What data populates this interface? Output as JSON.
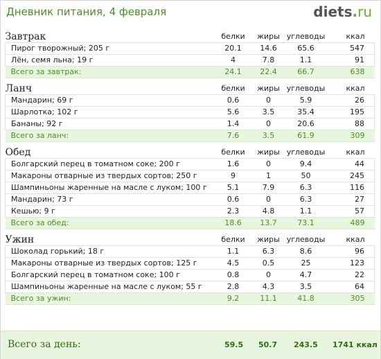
{
  "header": {
    "title": "Дневник питания, 4 февраля",
    "logo_name": "diets",
    "logo_dot": ".",
    "logo_tld": "ru"
  },
  "columns": {
    "protein": "белки",
    "fat": "жиры",
    "carbs": "углеводы",
    "kcal": "ккал"
  },
  "sections": [
    {
      "title": "Завтрак",
      "items": [
        {
          "name": "Пирог творожный; 205 г",
          "protein": "20.1",
          "fat": "14.6",
          "carbs": "65.6",
          "kcal": "547"
        },
        {
          "name": "Лён, семя льна; 19 г",
          "protein": "4",
          "fat": "7.8",
          "carbs": "1.1",
          "kcal": "91"
        }
      ],
      "total": {
        "label": "Всего за завтрак:",
        "protein": "24.1",
        "fat": "22.4",
        "carbs": "66.7",
        "kcal": "638"
      }
    },
    {
      "title": "Ланч",
      "items": [
        {
          "name": "Мандарин; 69 г",
          "protein": "0.6",
          "fat": "0",
          "carbs": "5.9",
          "kcal": "26"
        },
        {
          "name": "Шарлотка; 102 г",
          "protein": "5.6",
          "fat": "3.5",
          "carbs": "35.4",
          "kcal": "195"
        },
        {
          "name": "Бананы; 92 г",
          "protein": "1.4",
          "fat": "0",
          "carbs": "20.6",
          "kcal": "88"
        }
      ],
      "total": {
        "label": "Всего за ланч:",
        "protein": "7.6",
        "fat": "3.5",
        "carbs": "61.9",
        "kcal": "309"
      }
    },
    {
      "title": "Обед",
      "items": [
        {
          "name": "Болгарский перец в томатном соке; 200 г",
          "protein": "1.6",
          "fat": "0",
          "carbs": "9.4",
          "kcal": "44"
        },
        {
          "name": "Макароны отварные из твердых сортов; 250 г",
          "protein": "9",
          "fat": "1",
          "carbs": "50",
          "kcal": "245"
        },
        {
          "name": "Шампиньоны жаренные на масле с луком; 100 г",
          "protein": "5.1",
          "fat": "7.9",
          "carbs": "6.3",
          "kcal": "116"
        },
        {
          "name": "Мандарин; 73 г",
          "protein": "0.6",
          "fat": "0",
          "carbs": "6.3",
          "kcal": "27"
        },
        {
          "name": "Кешью; 9 г",
          "protein": "2.3",
          "fat": "4.8",
          "carbs": "1.1",
          "kcal": "57"
        }
      ],
      "total": {
        "label": "Всего за обед:",
        "protein": "18.6",
        "fat": "13.7",
        "carbs": "73.1",
        "kcal": "489"
      }
    },
    {
      "title": "Ужин",
      "items": [
        {
          "name": "Шоколад горький; 18 г",
          "protein": "1.1",
          "fat": "6.3",
          "carbs": "8.6",
          "kcal": "96"
        },
        {
          "name": "Макароны отварные из твердых сортов; 125 г",
          "protein": "4.5",
          "fat": "0.5",
          "carbs": "25",
          "kcal": "123"
        },
        {
          "name": "Болгарский перец в томатном соке; 100 г",
          "protein": "0.8",
          "fat": "0",
          "carbs": "4.7",
          "kcal": "22"
        },
        {
          "name": "Шампиньоны жаренные на масле с луком; 55 г",
          "protein": "2.8",
          "fat": "4.3",
          "carbs": "3.5",
          "kcal": "64"
        }
      ],
      "total": {
        "label": "Всего за ужин:",
        "protein": "9.2",
        "fat": "11.1",
        "carbs": "41.8",
        "kcal": "305"
      }
    }
  ],
  "day_total": {
    "label": "Всего за день:",
    "protein": "59.5",
    "fat": "50.7",
    "carbs": "243.5",
    "kcal": "1741 ккал"
  }
}
